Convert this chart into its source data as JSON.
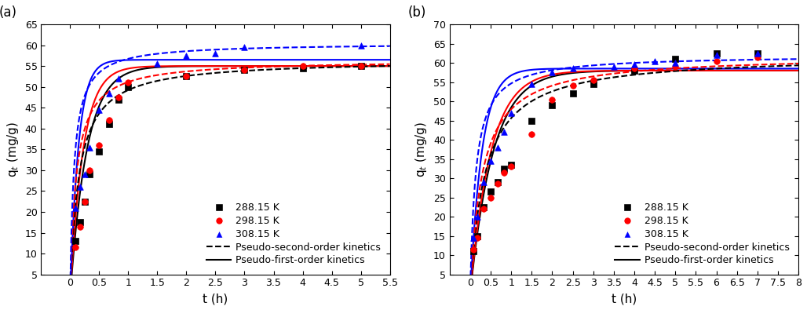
{
  "panel_a": {
    "label": "(a)",
    "xlim": [
      -0.5,
      5.5
    ],
    "ylim": [
      5,
      65
    ],
    "xticks": [
      0,
      0.5,
      1.0,
      1.5,
      2.0,
      2.5,
      3.0,
      3.5,
      4.0,
      4.5,
      5.0,
      5.5
    ],
    "yticks": [
      5,
      10,
      15,
      20,
      25,
      30,
      35,
      40,
      45,
      50,
      55,
      60,
      65
    ],
    "xlabel": "t (h)",
    "ylabel": "q$_t$ (mg/g)",
    "scatter": {
      "288K": {
        "color": "black",
        "marker": "s",
        "x": [
          0.083,
          0.167,
          0.25,
          0.333,
          0.5,
          0.667,
          0.833,
          1.0,
          2.0,
          3.0,
          4.0,
          5.0
        ],
        "y": [
          13.0,
          17.5,
          22.5,
          29.0,
          34.5,
          41.0,
          47.0,
          50.0,
          52.5,
          54.0,
          54.5,
          55.0
        ]
      },
      "298K": {
        "color": "red",
        "marker": "o",
        "x": [
          0.083,
          0.167,
          0.25,
          0.333,
          0.5,
          0.667,
          0.833,
          1.0,
          2.0,
          3.0,
          4.0,
          5.0
        ],
        "y": [
          11.5,
          16.5,
          22.5,
          30.0,
          36.0,
          42.0,
          47.5,
          51.0,
          52.5,
          54.0,
          55.0,
          55.0
        ]
      },
      "308K": {
        "color": "blue",
        "marker": "^",
        "x": [
          0.083,
          0.167,
          0.25,
          0.333,
          0.5,
          0.667,
          0.833,
          1.5,
          2.0,
          2.5,
          3.0,
          5.0
        ],
        "y": [
          21.0,
          26.0,
          29.0,
          35.5,
          44.5,
          48.5,
          52.0,
          55.5,
          57.5,
          58.0,
          59.5,
          60.0
        ]
      }
    },
    "pfo": {
      "288K": {
        "color": "black",
        "qe": 55.0,
        "k1": 3.5
      },
      "298K": {
        "color": "red",
        "qe": 55.0,
        "k1": 4.5
      },
      "308K": {
        "color": "blue",
        "qe": 56.5,
        "k1": 7.0
      }
    },
    "pso": {
      "288K": {
        "color": "black",
        "qe": 56.5,
        "k2": 0.12
      },
      "298K": {
        "color": "red",
        "qe": 56.5,
        "k2": 0.17
      },
      "308K": {
        "color": "blue",
        "qe": 60.5,
        "k2": 0.25
      }
    }
  },
  "panel_b": {
    "label": "(b)",
    "xlim": [
      -0.5,
      8.0
    ],
    "ylim": [
      5,
      70
    ],
    "xticks": [
      0,
      0.5,
      1.0,
      1.5,
      2.0,
      2.5,
      3.0,
      3.5,
      4.0,
      4.5,
      5.0,
      5.5,
      6.0,
      6.5,
      7.0,
      7.5,
      8.0
    ],
    "yticks": [
      5,
      10,
      15,
      20,
      25,
      30,
      35,
      40,
      45,
      50,
      55,
      60,
      65,
      70
    ],
    "xlabel": "t (h)",
    "ylabel": "q$_t$ (mg/g)",
    "scatter": {
      "288K": {
        "color": "black",
        "marker": "s",
        "x": [
          0.083,
          0.167,
          0.333,
          0.5,
          0.667,
          0.833,
          1.0,
          1.5,
          2.0,
          2.5,
          3.0,
          4.0,
          5.0,
          6.0,
          7.0
        ],
        "y": [
          11.0,
          15.0,
          22.5,
          26.5,
          29.0,
          32.5,
          33.5,
          45.0,
          49.0,
          52.0,
          54.5,
          58.0,
          61.0,
          62.5,
          62.5
        ]
      },
      "298K": {
        "color": "red",
        "marker": "o",
        "x": [
          0.083,
          0.167,
          0.333,
          0.5,
          0.667,
          0.833,
          1.0,
          1.5,
          2.0,
          2.5,
          3.0,
          4.0,
          5.0,
          6.0,
          7.0
        ],
        "y": [
          11.5,
          14.5,
          22.0,
          25.0,
          28.5,
          31.5,
          33.0,
          41.5,
          50.5,
          54.0,
          55.5,
          58.5,
          59.0,
          60.5,
          61.5
        ]
      },
      "308K": {
        "color": "blue",
        "marker": "^",
        "x": [
          0.083,
          0.167,
          0.333,
          0.5,
          0.667,
          0.833,
          1.0,
          1.5,
          2.0,
          2.5,
          3.5,
          4.0,
          4.5,
          5.0,
          6.0,
          7.0
        ],
        "y": [
          14.5,
          20.0,
          29.0,
          34.5,
          38.0,
          42.0,
          47.0,
          54.5,
          57.5,
          58.5,
          59.0,
          59.5,
          60.5,
          60.0,
          62.0,
          62.5
        ]
      }
    },
    "pfo": {
      "288K": {
        "color": "black",
        "qe": 58.0,
        "k1": 1.8
      },
      "298K": {
        "color": "red",
        "qe": 58.0,
        "k1": 2.0
      },
      "308K": {
        "color": "blue",
        "qe": 58.5,
        "k1": 3.5
      }
    },
    "pso": {
      "288K": {
        "color": "black",
        "qe": 62.0,
        "k2": 0.045
      },
      "298K": {
        "color": "red",
        "qe": 62.0,
        "k2": 0.055
      },
      "308K": {
        "color": "blue",
        "qe": 62.0,
        "k2": 0.12
      }
    }
  },
  "legend": {
    "288K": {
      "label": "288.15 K",
      "color": "black",
      "marker": "s"
    },
    "298K": {
      "label": "298.15 K",
      "color": "red",
      "marker": "o"
    },
    "308K": {
      "label": "308.15 K",
      "color": "blue",
      "marker": "^"
    },
    "pso_label": "Pseudo-second-order kinetics",
    "pfo_label": "Pseudo-first-order kinetics"
  },
  "figure_bg": "#ffffff",
  "axes_bg": "#ffffff",
  "fontsize_label": 11,
  "fontsize_tick": 9,
  "fontsize_legend": 9,
  "fontsize_panel": 12
}
